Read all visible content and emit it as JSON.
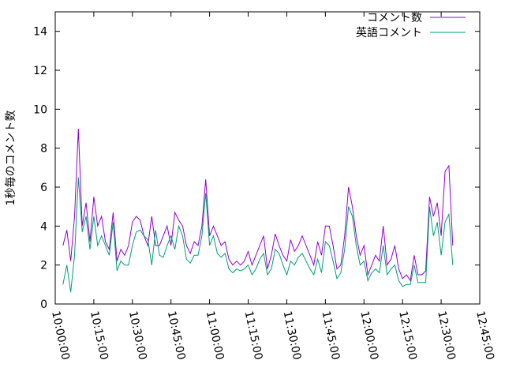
{
  "chart_data": {
    "type": "line",
    "y_label": "1秒毎のコメント数",
    "x": [
      "10:03:00",
      "10:04:30",
      "10:06:00",
      "10:07:30",
      "10:09:00",
      "10:10:30",
      "10:12:00",
      "10:13:30",
      "10:15:00",
      "10:16:30",
      "10:18:00",
      "10:19:30",
      "10:21:00",
      "10:22:30",
      "10:24:00",
      "10:25:30",
      "10:27:00",
      "10:28:30",
      "10:30:00",
      "10:31:30",
      "10:33:00",
      "10:34:30",
      "10:36:00",
      "10:37:30",
      "10:39:00",
      "10:40:30",
      "10:42:00",
      "10:43:30",
      "10:45:00",
      "10:46:30",
      "10:48:00",
      "10:49:30",
      "10:51:00",
      "10:52:30",
      "10:54:00",
      "10:55:30",
      "10:57:00",
      "10:58:30",
      "11:00:00",
      "11:01:30",
      "11:03:00",
      "11:04:30",
      "11:06:00",
      "11:07:30",
      "11:09:00",
      "11:10:30",
      "11:12:00",
      "11:13:30",
      "11:15:00",
      "11:16:30",
      "11:18:00",
      "11:19:30",
      "11:21:00",
      "11:22:30",
      "11:24:00",
      "11:25:30",
      "11:27:00",
      "11:28:30",
      "11:30:00",
      "11:31:30",
      "11:33:00",
      "11:34:30",
      "11:36:00",
      "11:37:30",
      "11:39:00",
      "11:40:30",
      "11:42:00",
      "11:43:30",
      "11:45:00",
      "11:46:30",
      "11:48:00",
      "11:49:30",
      "11:51:00",
      "11:52:30",
      "11:54:00",
      "11:55:30",
      "11:57:00",
      "11:58:30",
      "12:00:00",
      "12:01:30",
      "12:03:00",
      "12:04:30",
      "12:06:00",
      "12:07:30",
      "12:09:00",
      "12:10:30",
      "12:12:00",
      "12:13:30",
      "12:15:00",
      "12:16:30",
      "12:18:00",
      "12:19:30",
      "12:21:00",
      "12:22:30",
      "12:24:00",
      "12:25:30",
      "12:27:00",
      "12:28:30",
      "12:30:00",
      "12:31:30",
      "12:33:00",
      "12:34:30"
    ],
    "series": [
      {
        "name": "コメント数",
        "color": "#9400d3",
        "values": [
          3.0,
          3.8,
          2.2,
          4.5,
          9.0,
          4.0,
          5.2,
          3.2,
          5.5,
          4.0,
          4.5,
          3.2,
          2.8,
          4.7,
          2.2,
          2.8,
          2.5,
          3.0,
          4.2,
          4.5,
          4.3,
          3.5,
          3.0,
          4.5,
          3.0,
          3.0,
          3.5,
          4.0,
          3.0,
          4.7,
          4.3,
          4.0,
          3.0,
          2.6,
          3.2,
          3.0,
          4.0,
          6.4,
          3.5,
          4.0,
          3.5,
          3.0,
          3.2,
          2.3,
          2.0,
          2.2,
          2.0,
          2.2,
          2.7,
          2.0,
          2.5,
          3.0,
          3.5,
          1.8,
          2.5,
          3.6,
          3.0,
          2.5,
          2.2,
          3.3,
          2.7,
          3.0,
          3.5,
          3.0,
          2.5,
          2.0,
          3.2,
          2.5,
          4.0,
          4.0,
          3.0,
          1.8,
          2.0,
          3.5,
          6.0,
          5.0,
          3.5,
          2.5,
          3.0,
          1.5,
          2.0,
          2.5,
          2.2,
          4.0,
          2.0,
          2.3,
          3.0,
          1.8,
          1.3,
          1.5,
          1.2,
          2.5,
          1.5,
          1.5,
          1.7,
          5.5,
          4.5,
          5.2,
          3.5,
          6.8,
          7.1,
          3.0
        ]
      },
      {
        "name": "英語コメント",
        "color": "#009e73",
        "values": [
          1.0,
          2.0,
          0.6,
          2.5,
          6.5,
          3.7,
          4.5,
          2.8,
          4.5,
          3.0,
          3.5,
          3.0,
          2.5,
          4.2,
          1.7,
          2.2,
          2.0,
          2.0,
          3.0,
          3.7,
          3.8,
          3.5,
          3.3,
          2.0,
          3.8,
          2.5,
          2.4,
          3.0,
          3.5,
          2.8,
          4.0,
          3.5,
          2.3,
          2.1,
          2.5,
          2.5,
          3.5,
          5.7,
          3.0,
          3.5,
          2.6,
          2.4,
          2.6,
          1.8,
          1.6,
          1.8,
          1.7,
          1.8,
          2.0,
          1.5,
          1.8,
          2.3,
          2.6,
          1.5,
          1.8,
          2.8,
          2.6,
          2.0,
          1.5,
          2.2,
          2.0,
          2.4,
          2.6,
          2.2,
          1.8,
          1.5,
          2.3,
          1.6,
          3.2,
          3.0,
          2.2,
          1.3,
          1.6,
          2.8,
          5.0,
          4.5,
          3.0,
          2.0,
          2.2,
          1.2,
          1.6,
          1.8,
          1.6,
          3.0,
          1.5,
          1.8,
          2.0,
          1.2,
          0.9,
          1.0,
          1.0,
          2.0,
          1.1,
          1.1,
          1.1,
          5.0,
          3.5,
          4.2,
          2.5,
          4.2,
          4.6,
          2.0
        ]
      }
    ],
    "xlim": [
      "10:00:00",
      "12:45:00"
    ],
    "xticks": [
      "10:00:00",
      "10:15:00",
      "10:30:00",
      "10:45:00",
      "11:00:00",
      "11:15:00",
      "11:30:00",
      "11:45:00",
      "12:00:00",
      "12:15:00",
      "12:30:00",
      "12:45:00"
    ],
    "ylim": [
      0,
      15
    ],
    "yticks": [
      0,
      2,
      4,
      6,
      8,
      10,
      12,
      14
    ],
    "legend": "top right"
  }
}
